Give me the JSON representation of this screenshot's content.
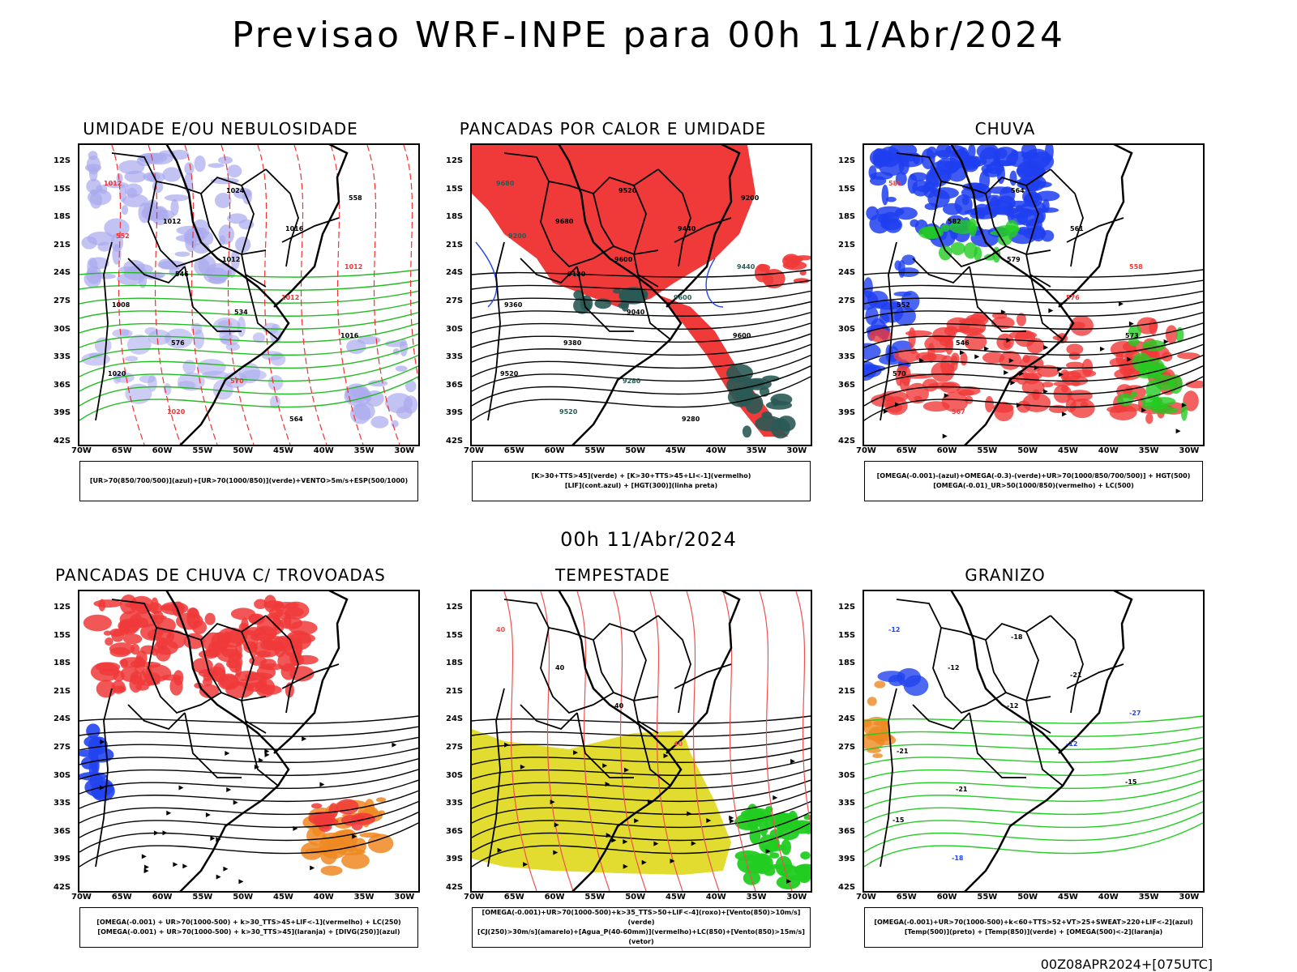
{
  "title": "Previsao WRF-INPE  para 00h 11/Abr/2024",
  "mid_title": "00h 11/Abr/2024",
  "run_stamp": "00Z08APR2024+[075UTC]",
  "lat_ticks": [
    "12S",
    "15S",
    "18S",
    "21S",
    "24S",
    "27S",
    "30S",
    "33S",
    "36S",
    "39S",
    "42S"
  ],
  "lon_ticks": [
    "70W",
    "65W",
    "60W",
    "55W",
    "50W",
    "45W",
    "40W",
    "35W",
    "30W"
  ],
  "panels": [
    {
      "title": "UMIDADE E/OU NEBULOSIDADE",
      "legend": [
        "[UR>70(850/700/500)](azul)+[UR>70(1000/850)](verde)+VENTO>5m/s+ESP(500/1000)"
      ],
      "labels": [
        "1012",
        "1012",
        "1012",
        "1012",
        "1016",
        "1020",
        "1020",
        "1024",
        "1016",
        "1012",
        "1008",
        "576",
        "570",
        "564",
        "558",
        "552",
        "546",
        "534"
      ],
      "colors": {
        "fill": "#aaaaee",
        "line1": "#22bb22",
        "line2": "#ee3333",
        "line3": "#000000"
      }
    },
    {
      "title": "PANCADAS POR CALOR E UMIDADE",
      "legend": [
        "[K>30+TTS>45](verde) + [K>30+TTS>45+LI<-1](vermelho)",
        "[LIF](cont.azul) + [HGT(300)](linha preta)"
      ],
      "labels": [
        "9680",
        "9680",
        "9600",
        "9600",
        "9600",
        "9520",
        "9520",
        "9520",
        "9440",
        "9440",
        "9360",
        "9380",
        "9280",
        "9280",
        "9200",
        "9200",
        "9120",
        "9040"
      ],
      "colors": {
        "fill": "#f03a3a",
        "line1": "#2244ee",
        "line2": "#2a5a55",
        "line3": "#000000"
      }
    },
    {
      "title": "CHUVA",
      "legend": [
        "[OMEGA(-0.001)-(azul)+OMEGA(-0.3)-(verde)+UR>70(1000/850/700/500)] + HGT(500)",
        "[OMEGA(-0.01)_UR>50(1000/850)(vermelho) + LC(500)"
      ],
      "labels": [
        "585",
        "582",
        "579",
        "576",
        "573",
        "570",
        "567",
        "564",
        "561",
        "558",
        "552",
        "546"
      ],
      "colors": {
        "fill": "#1e3ef0",
        "line1": "#22cc22",
        "line2": "#f03a3a",
        "line3": "#000000"
      }
    },
    {
      "title": "PANCADAS DE CHUVA C/ TROVOADAS",
      "legend": [
        "[OMEGA(-0.001) + UR>70(1000-500) + k>30_TTS>45+LIF<-1](vermelho) + LC(250)",
        "[OMEGA(-0.001) + UR>70(1000-500) + k>30_TTS>45](laranja) + [DIVG(250)](azul)"
      ],
      "labels": [],
      "colors": {
        "fill": "#f03a3a",
        "line1": "#ee8822",
        "line2": "#2244ee",
        "line3": "#000000"
      }
    },
    {
      "title": "TEMPESTADE",
      "legend": [
        "[OMEGA(-0.001)+UR>70(1000-500)+k>35_TTS>50+LIF<-4](roxo)+[Vento(850)>10m/s](verde)",
        "[CJ(250)>30m/s](amarelo)+[Agua_P(40-60mm)](vermelho)+LC(850)+[Vento(850)>15m/s](vetor)"
      ],
      "labels": [
        "40",
        "40",
        "40",
        "40"
      ],
      "colors": {
        "fill": "#e2dc30",
        "line1": "#22cc22",
        "line2": "#f05050",
        "line3": "#000000"
      }
    },
    {
      "title": "GRANIZO",
      "legend": [
        "[OMEGA(-0.001)+UR>70(1000-500)+k<60+TTS>52+VT>25+SWEAT>220+LIF<-2](azul)",
        "[Temp(500)](preto) + [Temp(850)](verde) + [OMEGA(500)<-2](laranja)"
      ],
      "labels": [
        "-12",
        "-12",
        "-12",
        "-12",
        "-15",
        "-15",
        "-18",
        "-18",
        "-21",
        "-27",
        "-21",
        "-21"
      ],
      "colors": {
        "fill": "#ee8822",
        "line1": "#22cc22",
        "line2": "#2244ee",
        "line3": "#000000"
      }
    }
  ]
}
